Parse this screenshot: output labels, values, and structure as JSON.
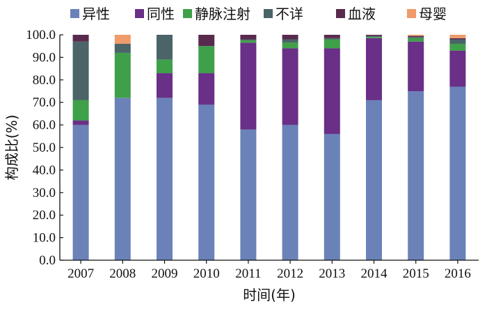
{
  "chart_data": {
    "type": "bar",
    "stacked": true,
    "categories": [
      "2007",
      "2008",
      "2009",
      "2010",
      "2011",
      "2012",
      "2013",
      "2014",
      "2015",
      "2016"
    ],
    "series": [
      {
        "name": "异性",
        "color": "#6b82b8",
        "values": [
          60.0,
          72.0,
          72.0,
          69.0,
          58.0,
          60.0,
          56.0,
          71.0,
          75.0,
          77.0
        ]
      },
      {
        "name": "同性",
        "color": "#6a2f86",
        "values": [
          2.0,
          0.0,
          11.0,
          14.0,
          38.5,
          34.0,
          38.0,
          27.5,
          22.0,
          16.0
        ]
      },
      {
        "name": "静脉注射",
        "color": "#3fa04a",
        "values": [
          9.0,
          20.0,
          6.0,
          12.0,
          1.0,
          2.5,
          4.0,
          0.5,
          1.5,
          3.0
        ]
      },
      {
        "name": "不详",
        "color": "#4a6468",
        "values": [
          26.0,
          4.0,
          11.0,
          0.0,
          0.5,
          1.5,
          0.5,
          0.5,
          0.5,
          2.0
        ]
      },
      {
        "name": "血液",
        "color": "#5a2a4e",
        "values": [
          3.0,
          0.0,
          0.0,
          5.0,
          2.0,
          2.0,
          1.5,
          0.5,
          0.5,
          0.5
        ]
      },
      {
        "name": "母婴",
        "color": "#ef9b6a",
        "values": [
          0.0,
          4.0,
          0.0,
          0.0,
          0.0,
          0.0,
          0.0,
          0.0,
          0.5,
          1.5
        ]
      }
    ],
    "yticks": [
      "0.0",
      "10.0",
      "20.0",
      "30.0",
      "40.0",
      "50.0",
      "60.0",
      "70.0",
      "80.0",
      "90.0",
      "100.0"
    ],
    "ylim": [
      0,
      100
    ],
    "xlabel": "时间(年)",
    "ylabel": "构成比(%)",
    "legend_position": "top",
    "grid": false
  }
}
